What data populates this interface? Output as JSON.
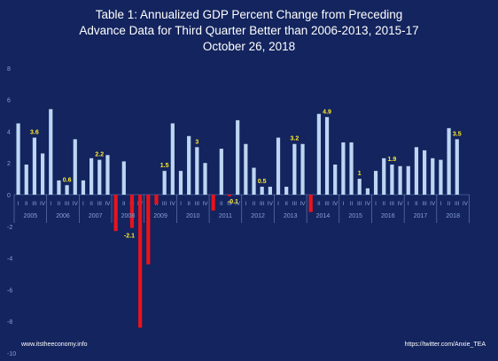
{
  "chart_data": {
    "type": "bar",
    "title": [
      "Table 1: Annualized GDP Percent Change from Preceding",
      "Advance Data for Third Quarter Better than 2006-2013, 2015-17",
      "October 26, 2018"
    ],
    "xlabel": "",
    "ylabel": "",
    "ylim": [
      -10,
      8
    ],
    "yticks": [
      8,
      6,
      4,
      2,
      0,
      -2,
      -4,
      -6,
      -8,
      -10
    ],
    "grid": false,
    "legend": "none",
    "quarter_labels": [
      "I",
      "II",
      "III",
      "IV"
    ],
    "years": [
      {
        "year": "2005",
        "values": [
          4.5,
          1.9,
          3.6,
          2.6
        ],
        "labels": [
          "",
          "",
          "3.6",
          ""
        ]
      },
      {
        "year": "2006",
        "values": [
          5.4,
          0.9,
          0.6,
          3.5
        ],
        "labels": [
          "",
          "",
          "0.6",
          ""
        ]
      },
      {
        "year": "2007",
        "values": [
          0.9,
          2.3,
          2.2,
          2.5
        ],
        "labels": [
          "",
          "",
          "2.2",
          ""
        ]
      },
      {
        "year": "2008",
        "values": [
          -2.3,
          2.1,
          -2.1,
          -8.4
        ],
        "labels": [
          "",
          "",
          "-2.1",
          ""
        ]
      },
      {
        "year": "2009",
        "values": [
          -4.4,
          -0.6,
          1.5,
          4.5
        ],
        "labels": [
          "",
          "",
          "1.5",
          ""
        ]
      },
      {
        "year": "2010",
        "values": [
          1.5,
          3.7,
          3.0,
          2.0
        ],
        "labels": [
          "",
          "",
          "3",
          ""
        ]
      },
      {
        "year": "2011",
        "values": [
          -1.0,
          2.9,
          -0.1,
          4.7
        ],
        "labels": [
          "",
          "",
          "-0.1",
          ""
        ]
      },
      {
        "year": "2012",
        "values": [
          3.2,
          1.7,
          0.5,
          0.5
        ],
        "labels": [
          "",
          "",
          "0.5",
          ""
        ]
      },
      {
        "year": "2013",
        "values": [
          3.6,
          0.5,
          3.2,
          3.2
        ],
        "labels": [
          "",
          "",
          "3.2",
          ""
        ]
      },
      {
        "year": "2014",
        "values": [
          -1.1,
          5.1,
          4.9,
          1.9
        ],
        "labels": [
          "",
          "",
          "4.9",
          ""
        ]
      },
      {
        "year": "2015",
        "values": [
          3.3,
          3.3,
          1.0,
          0.4
        ],
        "labels": [
          "",
          "",
          "1",
          ""
        ]
      },
      {
        "year": "2016",
        "values": [
          1.5,
          2.3,
          1.9,
          1.8
        ],
        "labels": [
          "",
          "",
          "1.9",
          ""
        ]
      },
      {
        "year": "2017",
        "values": [
          1.8,
          3.0,
          2.8,
          2.3
        ],
        "labels": [
          "",
          "",
          "",
          ""
        ]
      },
      {
        "year": "2018",
        "values": [
          2.2,
          4.2,
          3.5,
          null
        ],
        "labels": [
          "",
          "",
          "3.5",
          ""
        ]
      }
    ]
  },
  "footer": {
    "left": "www.itstheeconomy.info",
    "right": "https://twitter.com/Anxie_TEA"
  },
  "colors": {
    "background": "#13245e",
    "positive": "#bcd6f3",
    "negative": "#e8131c",
    "axis_text": "#8aa2d6",
    "label": "#ffeb2a",
    "title": "#ffffff"
  }
}
